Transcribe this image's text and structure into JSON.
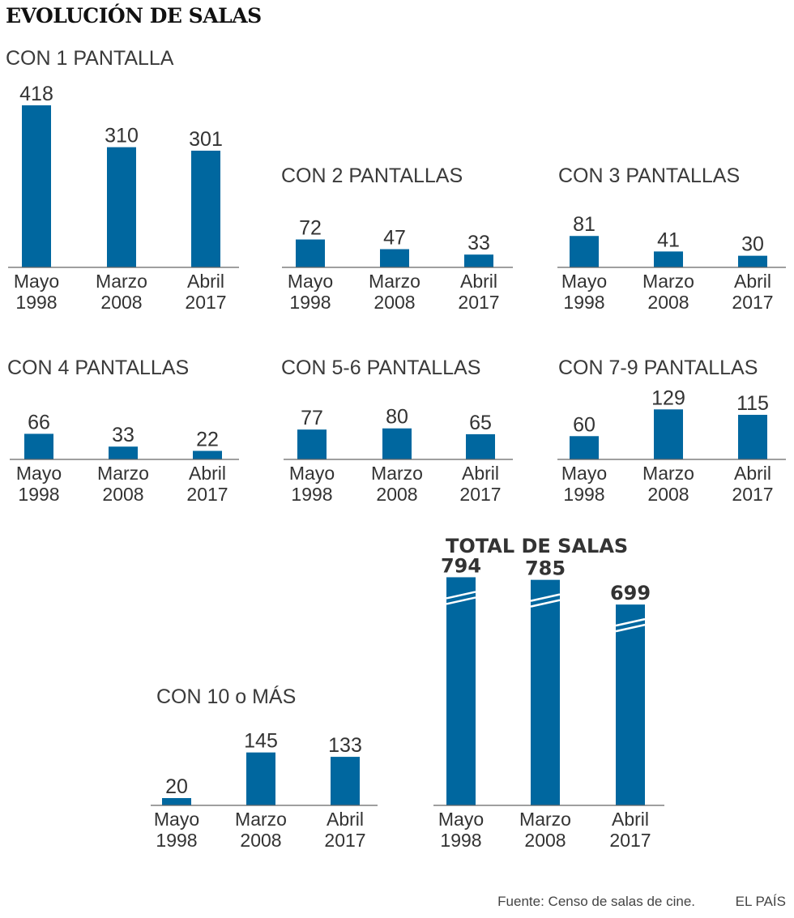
{
  "title": "EVOLUCIÓN DE SALAS",
  "source": "Fuente: Censo de salas de cine.",
  "brand": "EL PAÍS",
  "colors": {
    "bar": "#00679f",
    "axis": "#666666",
    "text": "#333333"
  },
  "chart_data": [
    {
      "type": "bar",
      "title": "CON 1 PANTALLA",
      "categories": [
        [
          "Mayo",
          "1998"
        ],
        [
          "Marzo",
          "2008"
        ],
        [
          "Abril",
          "2017"
        ]
      ],
      "values": [
        418,
        310,
        301
      ]
    },
    {
      "type": "bar",
      "title": "CON 2 PANTALLAS",
      "categories": [
        [
          "Mayo",
          "1998"
        ],
        [
          "Marzo",
          "2008"
        ],
        [
          "Abril",
          "2017"
        ]
      ],
      "values": [
        72,
        47,
        33
      ]
    },
    {
      "type": "bar",
      "title": "CON 3 PANTALLAS",
      "categories": [
        [
          "Mayo",
          "1998"
        ],
        [
          "Marzo",
          "2008"
        ],
        [
          "Abril",
          "2017"
        ]
      ],
      "values": [
        81,
        41,
        30
      ]
    },
    {
      "type": "bar",
      "title": "CON 4 PANTALLAS",
      "categories": [
        [
          "Mayo",
          "1998"
        ],
        [
          "Marzo",
          "2008"
        ],
        [
          "Abril",
          "2017"
        ]
      ],
      "values": [
        66,
        33,
        22
      ]
    },
    {
      "type": "bar",
      "title": "CON 5-6 PANTALLAS",
      "categories": [
        [
          "Mayo",
          "1998"
        ],
        [
          "Marzo",
          "2008"
        ],
        [
          "Abril",
          "2017"
        ]
      ],
      "values": [
        77,
        80,
        65
      ]
    },
    {
      "type": "bar",
      "title": "CON 7-9 PANTALLAS",
      "categories": [
        [
          "Mayo",
          "1998"
        ],
        [
          "Marzo",
          "2008"
        ],
        [
          "Abril",
          "2017"
        ]
      ],
      "values": [
        60,
        129,
        115
      ]
    },
    {
      "type": "bar",
      "title": "CON 10 o MÁS",
      "categories": [
        [
          "Mayo",
          "1998"
        ],
        [
          "Marzo",
          "2008"
        ],
        [
          "Abril",
          "2017"
        ]
      ],
      "values": [
        20,
        145,
        133
      ]
    },
    {
      "type": "bar",
      "title": "TOTAL DE SALAS",
      "axis_break": true,
      "categories": [
        [
          "Mayo",
          "1998"
        ],
        [
          "Marzo",
          "2008"
        ],
        [
          "Abril",
          "2017"
        ]
      ],
      "values": [
        794,
        785,
        699
      ]
    }
  ]
}
